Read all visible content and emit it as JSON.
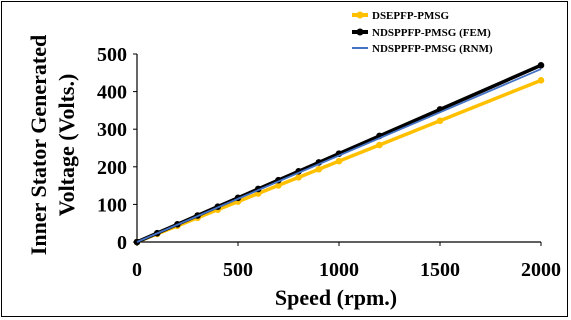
{
  "chart_data": {
    "type": "line",
    "title": "",
    "xlabel": "Speed (rpm.)",
    "ylabel_lines": [
      "Inner Stator Generated",
      "Voltage (Volts.)"
    ],
    "xlim": [
      0,
      2000
    ],
    "ylim": [
      0,
      500
    ],
    "x_ticks": [
      "0",
      "500",
      "1000",
      "1500",
      "2000"
    ],
    "y_ticks": [
      "0",
      "100",
      "200",
      "300",
      "400",
      "500"
    ],
    "grid": false,
    "legend_position": "top-right",
    "series": [
      {
        "name": "DSEPFP-PMSG",
        "color": "#FFC000",
        "marker": "circle",
        "x": [
          0,
          100,
          200,
          300,
          400,
          500,
          600,
          700,
          800,
          900,
          1000,
          1200,
          1500,
          2000
        ],
        "y": [
          0,
          21.5,
          43,
          64.5,
          86,
          107.5,
          129,
          150.5,
          172,
          193.5,
          215,
          258,
          322.5,
          430
        ]
      },
      {
        "name": "NDSPPFP-PMSG (FEM)",
        "color": "#000000",
        "marker": "circle",
        "x": [
          0,
          100,
          200,
          300,
          400,
          500,
          600,
          700,
          800,
          900,
          1000,
          1200,
          1500,
          2000
        ],
        "y": [
          0,
          23.5,
          47,
          70.5,
          94,
          117.5,
          141,
          164.5,
          188,
          211.5,
          235,
          282,
          352.5,
          470
        ]
      },
      {
        "name": "NDSPPFP-PMSG (RNM)",
        "color": "#4472C4",
        "marker": "none",
        "x": [
          0,
          2000
        ],
        "y": [
          0,
          460
        ]
      }
    ]
  }
}
